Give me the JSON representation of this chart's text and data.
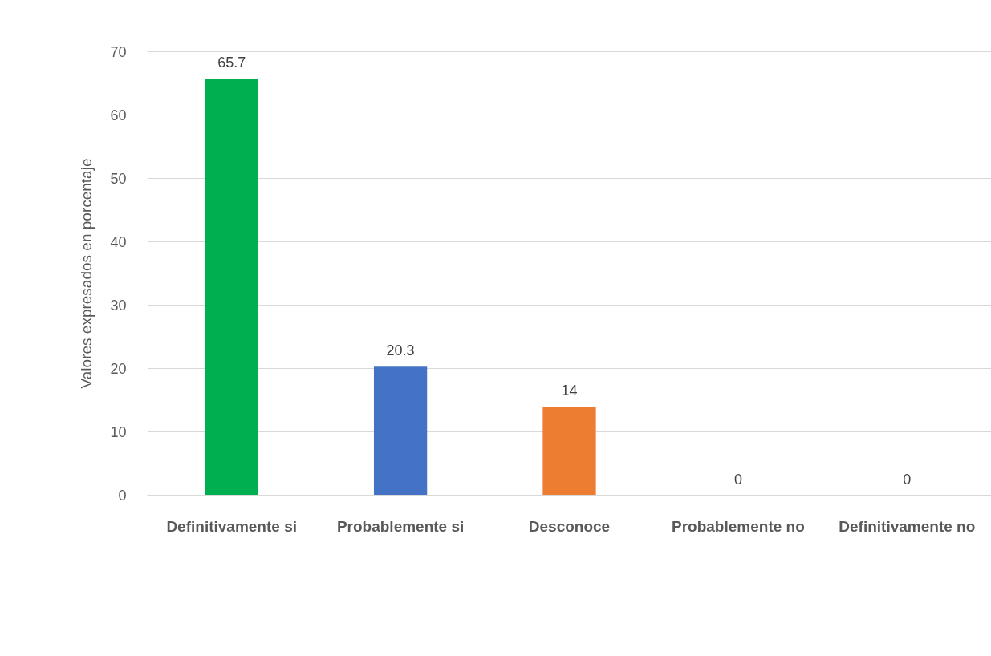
{
  "chart_data": {
    "type": "bar",
    "ylabel": "Valores expresados en porcentaje",
    "categories": [
      "Definitivamente si",
      "Probablemente si",
      "Desconoce",
      "Probablemente no",
      "Definitivamente no"
    ],
    "values": [
      65.7,
      20.3,
      14,
      0,
      0
    ],
    "colors": [
      "#00b050",
      "#4472c4",
      "#ed7d31",
      null,
      null
    ],
    "ylim": [
      0,
      70
    ],
    "yticks": [
      0,
      10,
      20,
      30,
      40,
      50,
      60,
      70
    ],
    "grid": "y",
    "data_labels": true
  }
}
